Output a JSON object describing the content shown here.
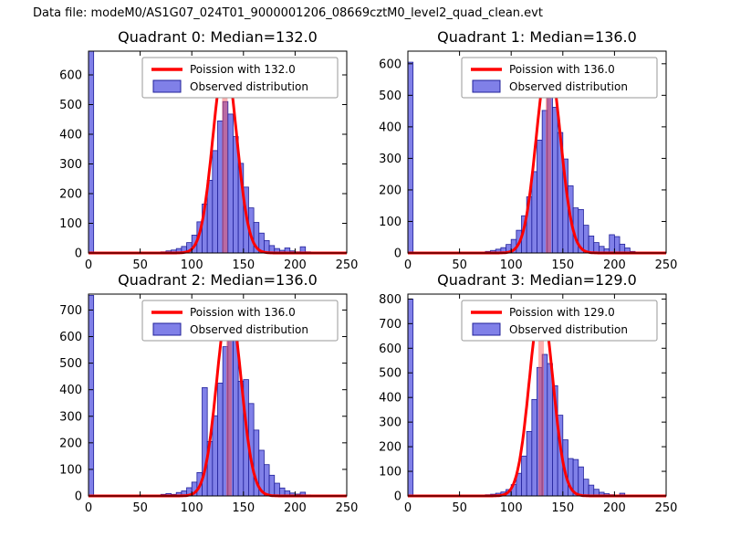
{
  "figure": {
    "title": "Data file: modeM0/AS1G07_024T01_9000001206_08669cztM0_level2_quad_clean.evt"
  },
  "colors": {
    "background": "#ffffff",
    "bar_fill": "#8080e8",
    "bar_edge": "#20209a",
    "curve": "#ff0000",
    "median_band": "rgba(255,80,80,0.45)",
    "axis": "#000000",
    "legend_border": "#999999",
    "legend_bg": "#ffffff"
  },
  "chart_data": {
    "type": "bar",
    "subtype": "histogram-grid-2x2",
    "bin_width": 5,
    "xlim": [
      0,
      250
    ],
    "grid": false,
    "legend_position": "upper right",
    "plots": [
      {
        "title": "Quadrant 0: Median=132.0",
        "median": 132.0,
        "legend": [
          "Poission with 132.0",
          "Observed distribution"
        ],
        "xticks": [
          0,
          50,
          100,
          150,
          200,
          250
        ],
        "yticks": [
          0,
          100,
          200,
          300,
          400,
          500,
          600
        ],
        "ylim": [
          0,
          680
        ],
        "poisson": {
          "mean": 132.0,
          "amplitude": 650
        },
        "bins": [
          [
            0,
            680
          ],
          [
            65,
            2
          ],
          [
            70,
            4
          ],
          [
            75,
            7
          ],
          [
            80,
            10
          ],
          [
            85,
            15
          ],
          [
            90,
            22
          ],
          [
            95,
            35
          ],
          [
            100,
            60
          ],
          [
            105,
            105
          ],
          [
            110,
            165
          ],
          [
            115,
            245
          ],
          [
            120,
            345
          ],
          [
            125,
            445
          ],
          [
            130,
            510
          ],
          [
            135,
            468
          ],
          [
            140,
            392
          ],
          [
            145,
            302
          ],
          [
            150,
            222
          ],
          [
            155,
            152
          ],
          [
            160,
            103
          ],
          [
            165,
            67
          ],
          [
            170,
            42
          ],
          [
            175,
            25
          ],
          [
            180,
            15
          ],
          [
            185,
            9
          ],
          [
            190,
            17
          ],
          [
            195,
            7
          ],
          [
            200,
            4
          ],
          [
            205,
            21
          ],
          [
            210,
            4
          ]
        ]
      },
      {
        "title": "Quadrant 1: Median=136.0",
        "median": 136.0,
        "legend": [
          "Poission with 136.0",
          "Observed distribution"
        ],
        "xticks": [
          0,
          50,
          100,
          150,
          200,
          250
        ],
        "yticks": [
          0,
          100,
          200,
          300,
          400,
          500,
          600
        ],
        "ylim": [
          0,
          640
        ],
        "poisson": {
          "mean": 136.0,
          "amplitude": 610
        },
        "bins": [
          [
            0,
            605
          ],
          [
            70,
            3
          ],
          [
            75,
            5
          ],
          [
            80,
            8
          ],
          [
            85,
            12
          ],
          [
            90,
            17
          ],
          [
            95,
            27
          ],
          [
            100,
            43
          ],
          [
            105,
            72
          ],
          [
            110,
            118
          ],
          [
            115,
            178
          ],
          [
            120,
            258
          ],
          [
            125,
            358
          ],
          [
            130,
            452
          ],
          [
            135,
            500
          ],
          [
            140,
            462
          ],
          [
            145,
            382
          ],
          [
            150,
            298
          ],
          [
            155,
            213
          ],
          [
            160,
            143
          ],
          [
            165,
            138
          ],
          [
            170,
            88
          ],
          [
            175,
            54
          ],
          [
            180,
            33
          ],
          [
            185,
            21
          ],
          [
            190,
            13
          ],
          [
            195,
            58
          ],
          [
            200,
            52
          ],
          [
            205,
            28
          ],
          [
            210,
            16
          ],
          [
            215,
            5
          ]
        ]
      },
      {
        "title": "Quadrant 2: Median=136.0",
        "median": 136.0,
        "legend": [
          "Poission with 136.0",
          "Observed distribution"
        ],
        "xticks": [
          0,
          50,
          100,
          150,
          200,
          250
        ],
        "yticks": [
          0,
          100,
          200,
          300,
          400,
          500,
          600,
          700
        ],
        "ylim": [
          0,
          760
        ],
        "poisson": {
          "mean": 136.0,
          "amplitude": 730
        },
        "bins": [
          [
            0,
            755
          ],
          [
            65,
            3
          ],
          [
            70,
            6
          ],
          [
            75,
            9
          ],
          [
            80,
            6
          ],
          [
            85,
            13
          ],
          [
            90,
            19
          ],
          [
            95,
            31
          ],
          [
            100,
            52
          ],
          [
            105,
            88
          ],
          [
            110,
            408
          ],
          [
            115,
            205
          ],
          [
            120,
            302
          ],
          [
            125,
            425
          ],
          [
            130,
            562
          ],
          [
            135,
            648
          ],
          [
            140,
            598
          ],
          [
            145,
            432
          ],
          [
            150,
            438
          ],
          [
            155,
            348
          ],
          [
            160,
            248
          ],
          [
            165,
            172
          ],
          [
            170,
            118
          ],
          [
            175,
            78
          ],
          [
            180,
            48
          ],
          [
            185,
            30
          ],
          [
            190,
            19
          ],
          [
            195,
            11
          ],
          [
            200,
            7
          ],
          [
            205,
            14
          ],
          [
            210,
            4
          ],
          [
            225,
            3
          ]
        ]
      },
      {
        "title": "Quadrant 3: Median=129.0",
        "median": 129.0,
        "legend": [
          "Poission with 129.0",
          "Observed distribution"
        ],
        "xticks": [
          0,
          50,
          100,
          150,
          200,
          250
        ],
        "yticks": [
          0,
          100,
          200,
          300,
          400,
          500,
          600,
          700,
          800
        ],
        "ylim": [
          0,
          820
        ],
        "poisson": {
          "mean": 129.0,
          "amplitude": 780
        },
        "bins": [
          [
            0,
            800
          ],
          [
            70,
            3
          ],
          [
            75,
            5
          ],
          [
            80,
            7
          ],
          [
            85,
            11
          ],
          [
            90,
            16
          ],
          [
            95,
            26
          ],
          [
            100,
            46
          ],
          [
            105,
            92
          ],
          [
            110,
            162
          ],
          [
            115,
            262
          ],
          [
            120,
            392
          ],
          [
            125,
            522
          ],
          [
            130,
            575
          ],
          [
            135,
            538
          ],
          [
            140,
            448
          ],
          [
            145,
            328
          ],
          [
            150,
            228
          ],
          [
            155,
            152
          ],
          [
            160,
            148
          ],
          [
            165,
            118
          ],
          [
            170,
            68
          ],
          [
            175,
            44
          ],
          [
            180,
            27
          ],
          [
            185,
            15
          ],
          [
            190,
            9
          ],
          [
            195,
            5
          ],
          [
            200,
            3
          ],
          [
            205,
            11
          ],
          [
            210,
            3
          ]
        ]
      }
    ]
  }
}
